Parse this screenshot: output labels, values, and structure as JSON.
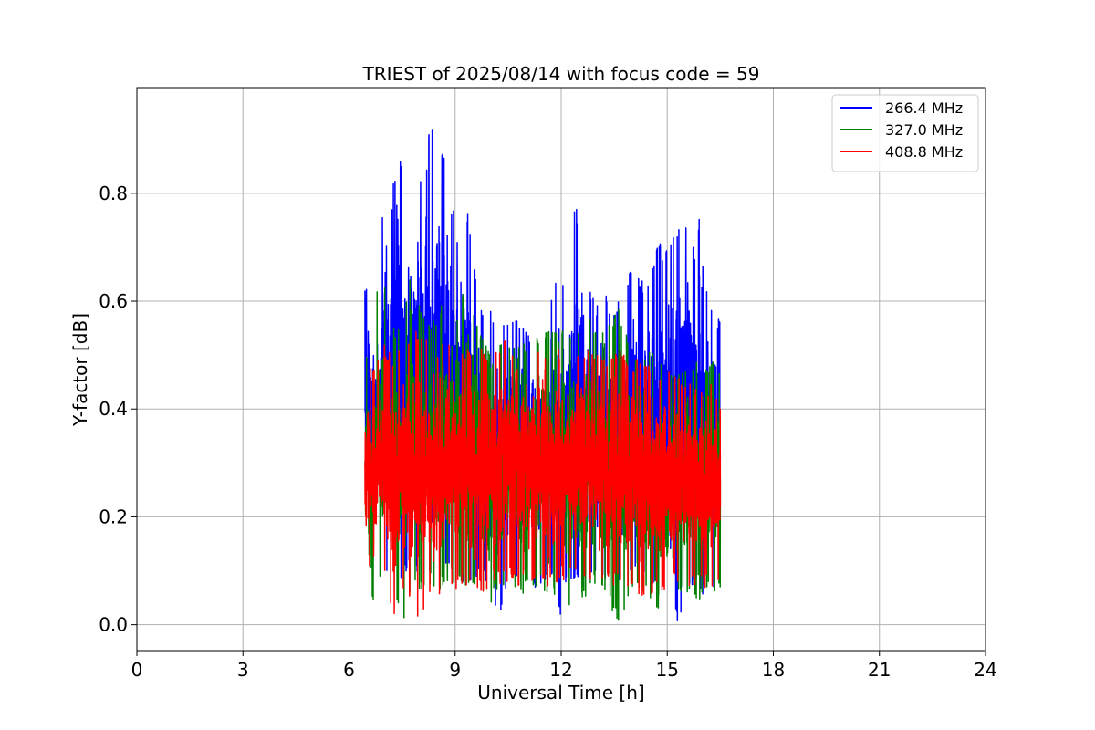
{
  "chart_data": {
    "type": "line",
    "title": "TRIEST of 2025/08/14 with focus code = 59",
    "xlabel": "Universal Time [h]",
    "ylabel": "Y-factor [dB]",
    "xlim": [
      0,
      24
    ],
    "ylim": [
      -0.048,
      0.996
    ],
    "xticks": [
      0,
      3,
      6,
      9,
      12,
      15,
      18,
      21,
      24
    ],
    "yticks": [
      0.0,
      0.2,
      0.4,
      0.6,
      0.8
    ],
    "grid": true,
    "legend_position": "top-right",
    "series": [
      {
        "name": "266.4 MHz",
        "color": "#0000ff",
        "x_range": [
          6.45,
          16.5
        ],
        "envelope": {
          "x": [
            6.45,
            6.6,
            6.8,
            7.0,
            7.2,
            7.35,
            7.5,
            7.7,
            7.9,
            8.1,
            8.3,
            8.5,
            8.7,
            8.9,
            9.1,
            9.3,
            9.5,
            9.7,
            9.9,
            10.2,
            10.5,
            10.8,
            11.1,
            11.4,
            11.7,
            12.0,
            12.2,
            12.4,
            12.6,
            12.8,
            13.0,
            13.2,
            13.5,
            13.8,
            14.1,
            14.4,
            14.7,
            15.0,
            15.3,
            15.6,
            15.8,
            16.0,
            16.1,
            16.3,
            16.5
          ],
          "max": [
            0.62,
            0.71,
            0.68,
            0.81,
            0.77,
            0.95,
            0.85,
            0.87,
            0.87,
            0.8,
            0.95,
            0.93,
            0.87,
            0.78,
            0.81,
            0.79,
            0.71,
            0.6,
            0.6,
            0.57,
            0.56,
            0.57,
            0.54,
            0.56,
            0.6,
            0.67,
            0.62,
            0.79,
            0.71,
            0.62,
            0.6,
            0.62,
            0.58,
            0.63,
            0.68,
            0.62,
            0.71,
            0.7,
            0.75,
            0.77,
            0.68,
            0.85,
            0.63,
            0.6,
            0.56
          ],
          "min": [
            0.12,
            0.1,
            0.1,
            0.08,
            0.09,
            0.1,
            0.08,
            0.1,
            0.09,
            0.08,
            0.1,
            0.09,
            0.1,
            0.08,
            0.08,
            0.06,
            0.07,
            0.09,
            0.08,
            0.0,
            0.06,
            0.08,
            0.07,
            0.05,
            0.1,
            0.0,
            0.09,
            0.08,
            0.07,
            0.08,
            0.09,
            0.06,
            0.09,
            0.07,
            0.1,
            0.08,
            0.06,
            0.05,
            0.0,
            0.06,
            0.07,
            0.05,
            0.0,
            0.06,
            0.08
          ]
        }
      },
      {
        "name": "327.0 MHz",
        "color": "#008000",
        "x_range": [
          6.45,
          16.5
        ],
        "envelope": {
          "x": [
            6.45,
            6.6,
            6.8,
            7.0,
            7.2,
            7.5,
            7.8,
            8.0,
            8.2,
            8.5,
            8.8,
            9.0,
            9.3,
            9.6,
            10.0,
            10.4,
            10.8,
            11.2,
            11.6,
            12.0,
            12.4,
            12.8,
            13.2,
            13.6,
            14.0,
            14.4,
            14.8,
            15.2,
            15.6,
            16.0,
            16.3,
            16.5
          ],
          "max": [
            0.5,
            0.55,
            0.62,
            0.64,
            0.55,
            0.58,
            0.66,
            0.6,
            0.55,
            0.58,
            0.62,
            0.57,
            0.64,
            0.56,
            0.5,
            0.54,
            0.52,
            0.54,
            0.56,
            0.55,
            0.53,
            0.58,
            0.54,
            0.6,
            0.5,
            0.52,
            0.5,
            0.48,
            0.5,
            0.48,
            0.5,
            0.48
          ],
          "min": [
            0.1,
            0.0,
            0.08,
            0.06,
            0.07,
            0.0,
            0.06,
            0.05,
            0.08,
            0.06,
            0.07,
            0.08,
            0.06,
            0.05,
            0.04,
            0.06,
            0.05,
            0.07,
            0.06,
            0.04,
            0.0,
            0.07,
            0.05,
            0.0,
            0.06,
            0.05,
            0.0,
            0.04,
            0.05,
            0.04,
            0.06,
            0.06
          ]
        }
      },
      {
        "name": "408.8 MHz",
        "color": "#ff0000",
        "x_range": [
          6.45,
          16.5
        ],
        "envelope": {
          "x": [
            6.45,
            6.7,
            7.0,
            7.3,
            7.6,
            8.0,
            8.4,
            8.8,
            9.2,
            9.6,
            10.0,
            10.4,
            10.8,
            11.2,
            11.6,
            12.0,
            12.4,
            12.8,
            13.2,
            13.6,
            14.0,
            14.4,
            14.8,
            15.2,
            15.6,
            16.0,
            16.3,
            16.5
          ],
          "max": [
            0.48,
            0.5,
            0.52,
            0.5,
            0.53,
            0.55,
            0.52,
            0.54,
            0.51,
            0.52,
            0.5,
            0.55,
            0.6,
            0.52,
            0.5,
            0.52,
            0.5,
            0.51,
            0.5,
            0.52,
            0.49,
            0.5,
            0.48,
            0.47,
            0.46,
            0.44,
            0.45,
            0.42
          ],
          "min": [
            0.12,
            0.09,
            0.08,
            0.0,
            0.06,
            0.0,
            0.05,
            0.06,
            0.07,
            0.05,
            0.07,
            0.08,
            0.07,
            0.08,
            0.07,
            0.08,
            0.09,
            0.07,
            0.08,
            0.07,
            0.06,
            0.05,
            0.06,
            0.07,
            0.06,
            0.07,
            0.06,
            0.08
          ]
        }
      }
    ]
  }
}
